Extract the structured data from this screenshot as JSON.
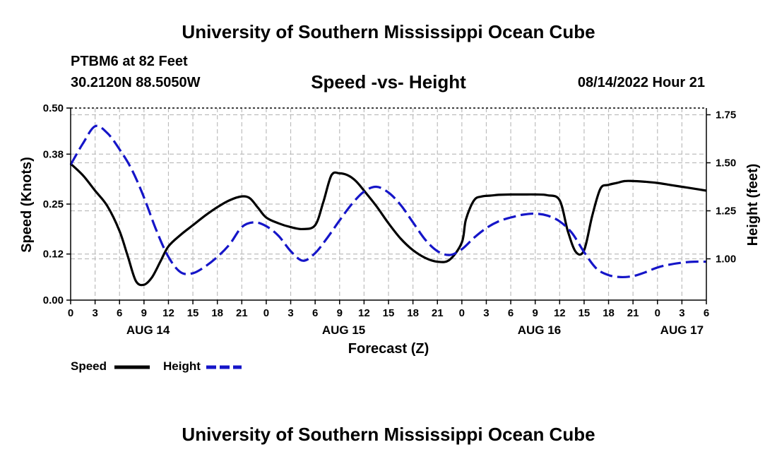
{
  "header": {
    "title": "University of Southern Mississippi Ocean Cube",
    "station": "PTBM6 at 82 Feet",
    "coordinates": "30.2120N  88.5050W",
    "subtitle": "Speed -vs- Height",
    "timestamp": "08/14/2022 Hour 21"
  },
  "footer": {
    "title": "University of Southern Mississippi Ocean Cube"
  },
  "legend": {
    "speed_label": "Speed",
    "height_label": "Height"
  },
  "colors": {
    "speed": "#000000",
    "height": "#1515c8",
    "grid": "#bdbdbd"
  },
  "chart_data": {
    "type": "line",
    "title": "Speed -vs- Height",
    "xlabel": "Forecast (Z)",
    "ylabel_left": "Speed (Knots)",
    "ylabel_right": "Height (feet)",
    "x_unit": "hours since AUG 14 00Z",
    "xlim": [
      0,
      78
    ],
    "ylim_left": [
      0,
      0.5
    ],
    "ylim_right": [
      0.785,
      1.785
    ],
    "left_ticks": [
      0.0,
      0.12,
      0.25,
      0.38,
      0.5
    ],
    "left_tick_labels": [
      "0.00",
      "0.12",
      "0.25",
      "0.38",
      "0.50"
    ],
    "right_ticks": [
      1.0,
      1.25,
      1.5,
      1.75
    ],
    "right_tick_labels": [
      "1.00",
      "1.25",
      "1.50",
      "1.75"
    ],
    "x_ticks": [
      0,
      3,
      6,
      9,
      12,
      15,
      18,
      21,
      24,
      27,
      30,
      33,
      36,
      39,
      42,
      45,
      48,
      51,
      54,
      57,
      60,
      63,
      66,
      69,
      72,
      75,
      78
    ],
    "x_tick_labels": [
      "0",
      "3",
      "6",
      "9",
      "12",
      "15",
      "18",
      "21",
      "0",
      "3",
      "6",
      "9",
      "12",
      "15",
      "18",
      "21",
      "0",
      "3",
      "6",
      "9",
      "12",
      "15",
      "18",
      "21",
      "0",
      "3",
      "6"
    ],
    "date_labels": [
      {
        "label": "AUG 14",
        "x": 9.5
      },
      {
        "label": "AUG 15",
        "x": 33.5
      },
      {
        "label": "AUG 16",
        "x": 57.5
      },
      {
        "label": "AUG 17",
        "x": 75
      }
    ],
    "grid": true,
    "series": [
      {
        "name": "Speed",
        "axis": "left",
        "style": "solid",
        "x": [
          0,
          1.5,
          3,
          4.5,
          6,
          7,
          8,
          9,
          10,
          11,
          12,
          13.5,
          15,
          16.5,
          18,
          19.5,
          21,
          22,
          23,
          24,
          25.5,
          27,
          28.5,
          30,
          31,
          32,
          33,
          34,
          35,
          36,
          37.5,
          39,
          40.5,
          42,
          43.5,
          45,
          46.5,
          48,
          48.5,
          49.5,
          50.5,
          51.5,
          52.5,
          54,
          55.5,
          57,
          58.5,
          60,
          61,
          62,
          63,
          64,
          65,
          66,
          67,
          68,
          69,
          70.5,
          72,
          73.5,
          75,
          76.5,
          78
        ],
        "values": [
          0.355,
          0.325,
          0.285,
          0.245,
          0.18,
          0.115,
          0.05,
          0.04,
          0.06,
          0.1,
          0.14,
          0.17,
          0.195,
          0.22,
          0.242,
          0.26,
          0.27,
          0.265,
          0.24,
          0.215,
          0.2,
          0.19,
          0.185,
          0.195,
          0.255,
          0.325,
          0.33,
          0.325,
          0.31,
          0.285,
          0.245,
          0.2,
          0.16,
          0.13,
          0.11,
          0.1,
          0.105,
          0.15,
          0.21,
          0.26,
          0.27,
          0.272,
          0.274,
          0.275,
          0.275,
          0.275,
          0.273,
          0.26,
          0.18,
          0.125,
          0.13,
          0.22,
          0.29,
          0.3,
          0.305,
          0.31,
          0.31,
          0.308,
          0.305,
          0.3,
          0.295,
          0.29,
          0.285
        ]
      },
      {
        "name": "Height",
        "axis": "right",
        "style": "dashed",
        "x": [
          0,
          1.5,
          3,
          4.5,
          6,
          7.5,
          9,
          10.5,
          12,
          13.5,
          15,
          16.5,
          18,
          19.5,
          21,
          22.5,
          24,
          25.5,
          27,
          28.5,
          30,
          31.5,
          33,
          34.5,
          36,
          37.5,
          39,
          40.5,
          42,
          43.5,
          45,
          46.5,
          48,
          49.5,
          51,
          52.5,
          54,
          55.5,
          57,
          58.5,
          60,
          61.5,
          63,
          64.5,
          66,
          67.5,
          69,
          70.5,
          72,
          73.5,
          75,
          76.5,
          78
        ],
        "values": [
          1.49,
          1.6,
          1.69,
          1.655,
          1.57,
          1.465,
          1.32,
          1.15,
          1.01,
          0.93,
          0.925,
          0.96,
          1.01,
          1.075,
          1.165,
          1.19,
          1.17,
          1.12,
          1.04,
          0.99,
          1.03,
          1.11,
          1.2,
          1.285,
          1.35,
          1.375,
          1.345,
          1.28,
          1.19,
          1.1,
          1.04,
          1.02,
          1.05,
          1.11,
          1.16,
          1.195,
          1.215,
          1.23,
          1.235,
          1.225,
          1.195,
          1.135,
          1.035,
          0.95,
          0.915,
          0.905,
          0.91,
          0.93,
          0.955,
          0.97,
          0.98,
          0.985,
          0.985
        ]
      }
    ]
  }
}
